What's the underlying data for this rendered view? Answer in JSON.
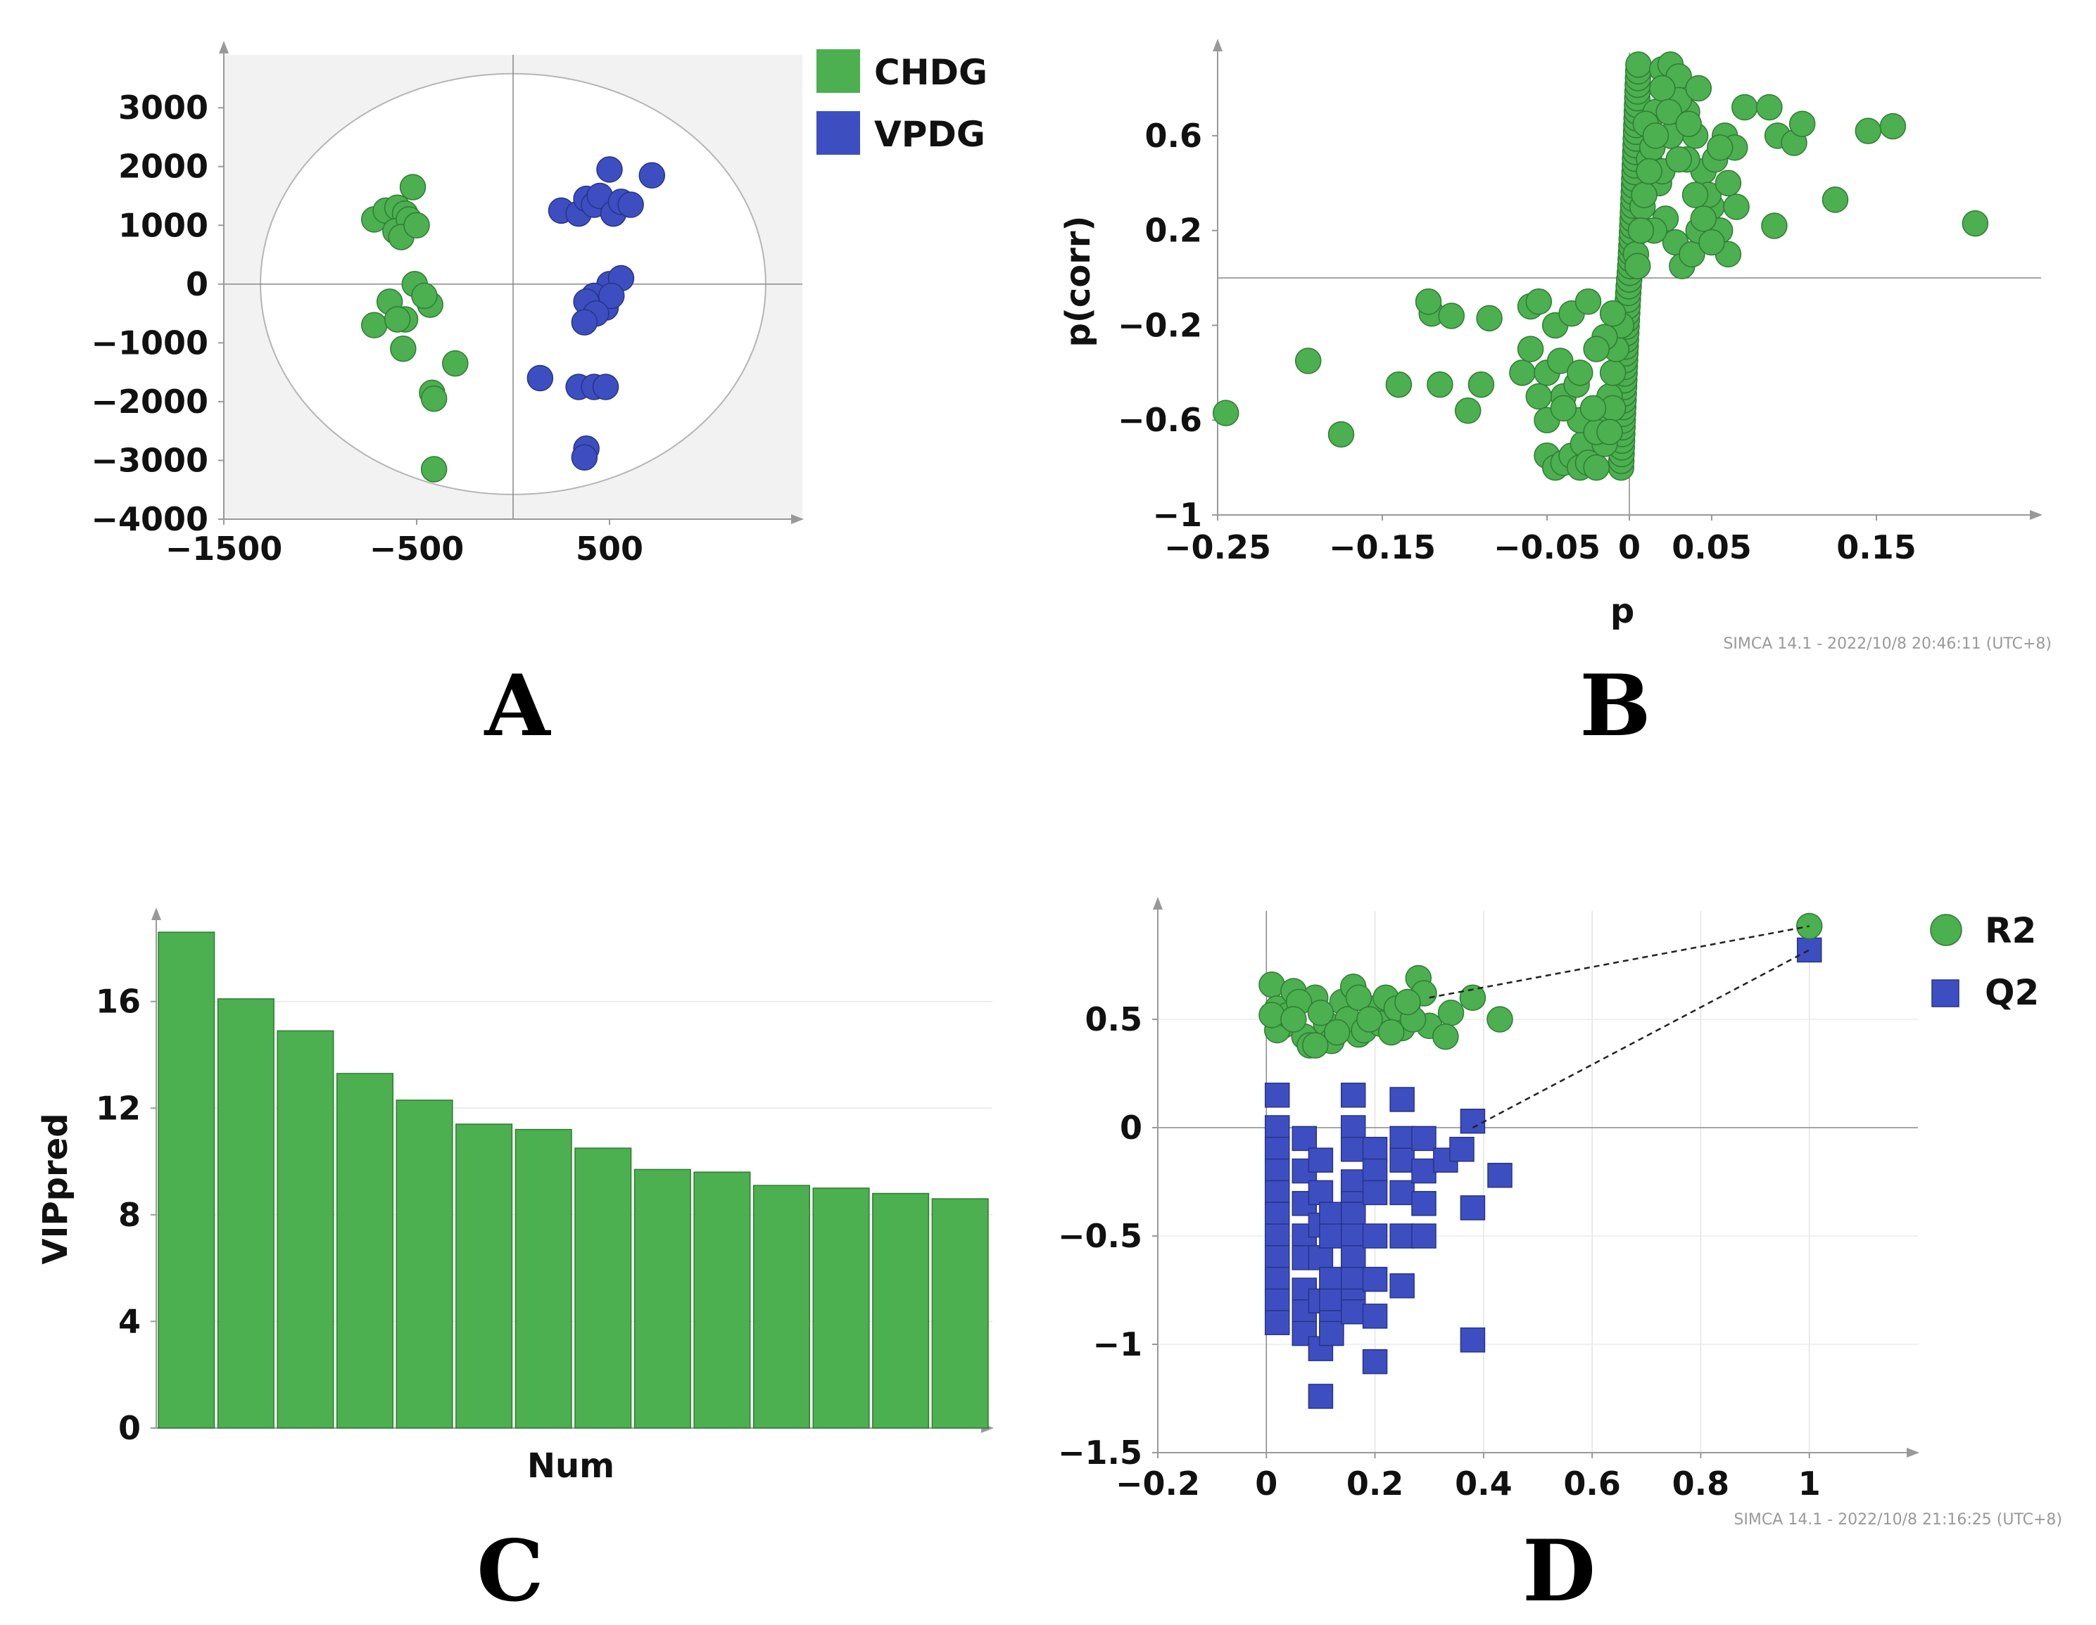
{
  "colors": {
    "green": "#4caf50",
    "green_edge": "#2e7d32",
    "blue": "#3d4fc0",
    "blue_edge": "#26338a"
  },
  "chart_data": [
    {
      "panel": "A",
      "type": "scatter",
      "xlabel": "",
      "ylabel": "",
      "xlim": [
        -1500,
        1500
      ],
      "ylim": [
        -4000,
        3900
      ],
      "xticks": [
        "−1500",
        "−500",
        "500"
      ],
      "xtick_values": [
        -1500,
        -500,
        500
      ],
      "yticks": [
        "3000",
        "2000",
        "1000",
        "0",
        "−1000",
        "−2000",
        "−3000",
        "−4000"
      ],
      "ytick_values": [
        3000,
        2000,
        1000,
        0,
        -1000,
        -2000,
        -3000,
        -4000
      ],
      "ellipse": {
        "rx": 1310,
        "ry": 3580
      },
      "legend_position": "top-right",
      "series": [
        {
          "name": "CHDG",
          "color": "#4caf50",
          "x": [
            -720,
            -660,
            -600,
            -560,
            -610,
            -540,
            -520,
            -580,
            -500,
            -560,
            -640,
            -430,
            -510,
            -570,
            -460,
            -720,
            -600,
            -300,
            -420,
            -410,
            -410
          ],
          "y": [
            1100,
            1250,
            1300,
            1200,
            900,
            1100,
            1650,
            800,
            1000,
            -600,
            -300,
            -350,
            0,
            -1100,
            -200,
            -700,
            -600,
            -1350,
            -1850,
            -1950,
            -3150
          ]
        },
        {
          "name": "VPDG",
          "color": "#3d4fc0",
          "x": [
            250,
            340,
            380,
            420,
            450,
            500,
            520,
            560,
            610,
            720,
            500,
            560,
            420,
            480,
            510,
            380,
            430,
            370,
            140,
            340,
            420,
            480,
            380,
            370
          ],
          "y": [
            1250,
            1200,
            1450,
            1350,
            1500,
            1950,
            1200,
            1400,
            1350,
            1850,
            0,
            100,
            -200,
            -400,
            -200,
            -300,
            -500,
            -650,
            -1600,
            -1750,
            -1750,
            -1750,
            -2800,
            -2950
          ]
        }
      ]
    },
    {
      "panel": "B",
      "type": "scatter",
      "xlabel": "p",
      "ylabel": "p(corr)",
      "xlim": [
        -0.25,
        0.25
      ],
      "ylim": [
        -1,
        0.95
      ],
      "xticks": [
        "−0.25",
        "−0.15",
        "−0.05",
        "0",
        "0.05",
        "0.15"
      ],
      "xtick_values": [
        -0.25,
        -0.15,
        -0.05,
        0,
        0.05,
        0.15
      ],
      "yticks": [
        "0.6",
        "0.2",
        "−0.2",
        "−0.6",
        "−1"
      ],
      "ytick_values": [
        0.6,
        0.2,
        -0.2,
        -0.6,
        -1
      ],
      "series": [
        {
          "name": "",
          "color": "#4caf50",
          "x": [
            -0.245,
            -0.195,
            -0.175,
            -0.14,
            -0.12,
            -0.122,
            -0.115,
            -0.108,
            -0.098,
            -0.09,
            -0.085,
            -0.06,
            -0.055,
            -0.065,
            -0.05,
            -0.045,
            -0.04,
            -0.035,
            -0.03,
            -0.028,
            -0.025,
            -0.02,
            -0.018,
            -0.015,
            -0.012,
            -0.01,
            -0.008,
            -0.005,
            -0.06,
            -0.05,
            -0.04,
            -0.03,
            -0.02,
            -0.01,
            -0.045,
            -0.035,
            -0.025,
            -0.015,
            -0.055,
            -0.042,
            -0.032,
            -0.022,
            -0.012,
            -0.05,
            -0.04,
            -0.03,
            -0.02,
            -0.01,
            0.004,
            0.008,
            0.012,
            0.016,
            0.02,
            0.025,
            0.03,
            0.035,
            0.04,
            0.045,
            0.05,
            0.055,
            0.06,
            0.01,
            0.014,
            0.018,
            0.022,
            0.028,
            0.032,
            0.038,
            0.042,
            0.048,
            0.052,
            0.058,
            0.064,
            0.07,
            0.085,
            0.09,
            0.1,
            0.105,
            0.125,
            0.145,
            0.16,
            0.21,
            0.015,
            0.02,
            0.025,
            0.03,
            0.035,
            0.04,
            0.045,
            0.05,
            0.055,
            0.06,
            0.088,
            0.065,
            0.005,
            0.007,
            0.009,
            0.012,
            0.016,
            0.02,
            0.024,
            0.03,
            0.036,
            0.042
          ],
          "y": [
            -0.57,
            -0.35,
            -0.66,
            -0.45,
            -0.15,
            -0.1,
            -0.45,
            -0.16,
            -0.56,
            -0.45,
            -0.17,
            -0.12,
            -0.1,
            -0.4,
            -0.75,
            -0.8,
            -0.78,
            -0.75,
            -0.8,
            -0.7,
            -0.78,
            -0.8,
            -0.6,
            -0.7,
            -0.5,
            -0.4,
            -0.3,
            -0.2,
            -0.3,
            -0.4,
            -0.5,
            -0.6,
            -0.65,
            -0.55,
            -0.2,
            -0.15,
            -0.1,
            -0.25,
            -0.5,
            -0.35,
            -0.45,
            -0.55,
            -0.65,
            -0.6,
            -0.55,
            -0.4,
            -0.3,
            -0.15,
            0.1,
            0.3,
            0.5,
            0.7,
            0.88,
            0.9,
            0.85,
            0.7,
            0.6,
            0.45,
            0.3,
            0.2,
            0.1,
            0.65,
            0.55,
            0.4,
            0.25,
            0.15,
            0.05,
            0.1,
            0.2,
            0.35,
            0.5,
            0.6,
            0.55,
            0.72,
            0.72,
            0.6,
            0.57,
            0.65,
            0.33,
            0.62,
            0.64,
            0.23,
            0.2,
            0.45,
            0.6,
            0.75,
            0.5,
            0.35,
            0.25,
            0.15,
            0.55,
            0.4,
            0.22,
            0.3,
            0.05,
            0.2,
            0.35,
            0.45,
            0.6,
            0.8,
            0.7,
            0.5,
            0.65,
            0.8
          ]
        }
      ]
    },
    {
      "panel": "C",
      "type": "bar",
      "xlabel": "Num",
      "ylabel": "VIPpred",
      "ylim": [
        0,
        19
      ],
      "yticks": [
        "0",
        "4",
        "8",
        "12",
        "16"
      ],
      "ytick_values": [
        0,
        4,
        8,
        12,
        16
      ],
      "values": [
        18.6,
        16.1,
        14.9,
        13.3,
        12.3,
        11.4,
        11.2,
        10.5,
        9.7,
        9.6,
        9.1,
        9.0,
        8.8,
        8.6
      ],
      "color": "#4caf50"
    },
    {
      "panel": "D",
      "type": "scatter",
      "xlabel": "",
      "ylabel": "",
      "xlim": [
        -0.2,
        1.2
      ],
      "ylim": [
        -1.5,
        1.0
      ],
      "xticks": [
        "−0.2",
        "0",
        "0.2",
        "0.4",
        "0.6",
        "0.8",
        "1"
      ],
      "xtick_values": [
        -0.2,
        0,
        0.2,
        0.4,
        0.6,
        0.8,
        1
      ],
      "yticks": [
        "0.5",
        "0",
        "−0.5",
        "−1",
        "−1.5"
      ],
      "ytick_values": [
        0.5,
        0,
        -0.5,
        -1,
        -1.5
      ],
      "legend_position": "top-right",
      "series": [
        {
          "name": "R2",
          "marker": "circle",
          "color": "#4caf50",
          "x": [
            0.01,
            0.02,
            0.03,
            0.05,
            0.07,
            0.09,
            0.11,
            0.14,
            0.16,
            0.17,
            0.2,
            0.22,
            0.25,
            0.26,
            0.28,
            0.3,
            0.34,
            0.38,
            0.43,
            0.02,
            0.04,
            0.06,
            0.08,
            0.1,
            0.12,
            0.15,
            0.18,
            0.21,
            0.24,
            0.27,
            0.29,
            0.33,
            0.01,
            0.05,
            0.09,
            0.13,
            0.17,
            0.19,
            0.23,
            0.26,
            1.0
          ],
          "y": [
            0.66,
            0.55,
            0.47,
            0.63,
            0.42,
            0.6,
            0.48,
            0.58,
            0.65,
            0.43,
            0.55,
            0.6,
            0.46,
            0.57,
            0.69,
            0.47,
            0.53,
            0.6,
            0.5,
            0.45,
            0.52,
            0.58,
            0.38,
            0.53,
            0.4,
            0.5,
            0.45,
            0.48,
            0.55,
            0.5,
            0.62,
            0.42,
            0.52,
            0.5,
            0.38,
            0.44,
            0.6,
            0.5,
            0.44,
            0.58,
            0.93
          ]
        },
        {
          "name": "Q2",
          "marker": "square",
          "color": "#3d4fc0",
          "x": [
            0.02,
            0.02,
            0.02,
            0.02,
            0.02,
            0.02,
            0.02,
            0.02,
            0.02,
            0.02,
            0.02,
            0.07,
            0.07,
            0.07,
            0.07,
            0.07,
            0.07,
            0.07,
            0.07,
            0.07,
            0.1,
            0.1,
            0.1,
            0.1,
            0.1,
            0.1,
            0.1,
            0.12,
            0.12,
            0.12,
            0.12,
            0.12,
            0.12,
            0.16,
            0.16,
            0.16,
            0.16,
            0.16,
            0.16,
            0.16,
            0.16,
            0.16,
            0.16,
            0.16,
            0.2,
            0.2,
            0.2,
            0.2,
            0.2,
            0.2,
            0.2,
            0.25,
            0.25,
            0.25,
            0.25,
            0.25,
            0.25,
            0.29,
            0.29,
            0.29,
            0.29,
            0.33,
            0.36,
            0.38,
            0.38,
            0.38,
            0.43,
            1.0
          ],
          "y": [
            0.15,
            0.0,
            -0.1,
            -0.2,
            -0.3,
            -0.4,
            -0.5,
            -0.6,
            -0.7,
            -0.8,
            -0.9,
            -0.05,
            -0.2,
            -0.35,
            -0.5,
            -0.6,
            -0.75,
            -0.85,
            -0.95,
            -0.6,
            -0.15,
            -0.3,
            -0.45,
            -0.6,
            -0.8,
            -1.02,
            -1.24,
            -0.4,
            -0.5,
            -0.7,
            -0.8,
            -0.9,
            -0.95,
            0.15,
            0.0,
            -0.1,
            -0.25,
            -0.35,
            -0.4,
            -0.5,
            -0.6,
            -0.7,
            -0.8,
            -0.85,
            -0.1,
            -0.2,
            -0.3,
            -0.5,
            -0.7,
            -0.87,
            -1.08,
            0.13,
            -0.05,
            -0.15,
            -0.3,
            -0.5,
            -0.73,
            -0.05,
            -0.2,
            -0.35,
            -0.5,
            -0.15,
            -0.1,
            0.03,
            -0.37,
            -0.98,
            -0.22,
            0.82
          ]
        }
      ],
      "dashed_lines": [
        {
          "from": [
            0.3,
            0.6
          ],
          "to": [
            1.0,
            0.93
          ]
        },
        {
          "from": [
            0.38,
            0.0
          ],
          "to": [
            1.0,
            0.82
          ]
        }
      ]
    }
  ],
  "panel_labels": [
    "A",
    "B",
    "C",
    "D"
  ],
  "watermarks": [
    "SIMCA 14.1 - 2022/10/8 20:46:11 (UTC+8)",
    "SIMCA 14.1 - 2022/10/8 21:16:25 (UTC+8)"
  ]
}
